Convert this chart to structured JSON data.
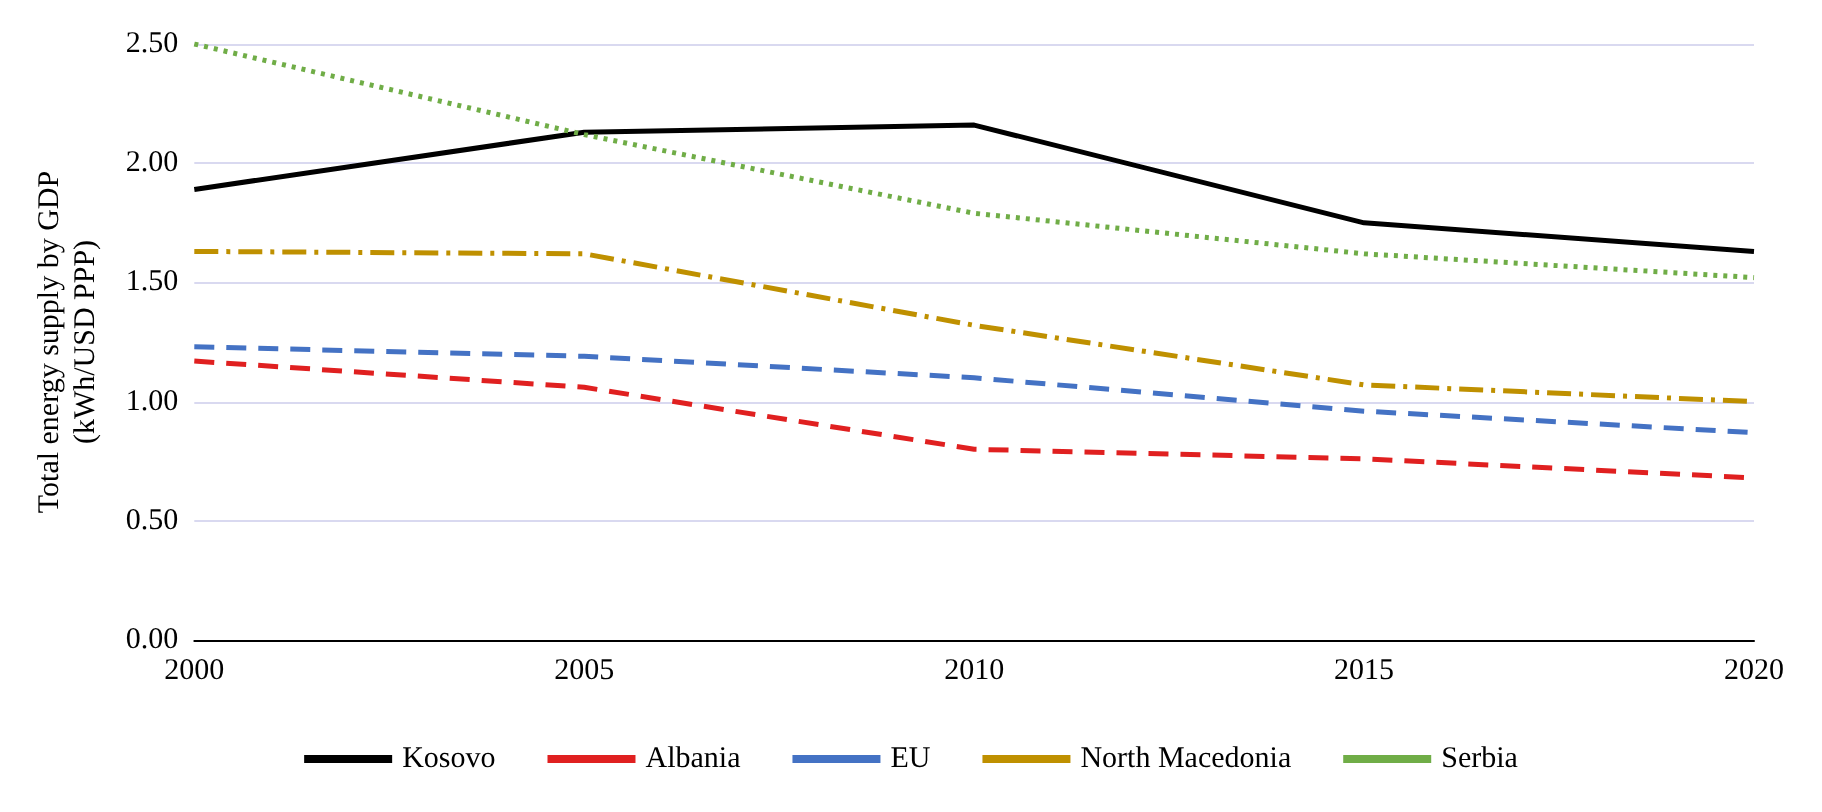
{
  "chart_data": {
    "type": "line",
    "ylabel": "Total energy supply by GDP (kWh/USD PPP)",
    "x": [
      2000,
      2005,
      2010,
      2015,
      2020
    ],
    "xlim": [
      2000,
      2020
    ],
    "xticks": [
      2000,
      2005,
      2010,
      2015,
      2020
    ],
    "ylim": [
      0,
      2.5
    ],
    "yticks": [
      {
        "value": 0,
        "label": "0.00"
      },
      {
        "value": 0.5,
        "label": "0.50"
      },
      {
        "value": 1,
        "label": "1.00"
      },
      {
        "value": 1.5,
        "label": "1.50"
      },
      {
        "value": 2,
        "label": "2.00"
      },
      {
        "value": 2.5,
        "label": "2.50"
      }
    ],
    "grid": "y",
    "legend": "bottom",
    "marker": "none",
    "series": [
      {
        "name": "Kosovo",
        "color": "#000000",
        "line_style": "solid",
        "values": [
          1.89,
          2.13,
          2.16,
          1.75,
          1.63
        ]
      },
      {
        "name": "Albania",
        "color": "#e02020",
        "line_style": "dashed",
        "values": [
          1.17,
          1.06,
          0.8,
          0.76,
          0.68
        ]
      },
      {
        "name": "EU",
        "color": "#4472c4",
        "line_style": "dashed",
        "values": [
          1.23,
          1.19,
          1.1,
          0.96,
          0.87
        ]
      },
      {
        "name": "North Macedonia",
        "color": "#bf9000",
        "line_style": "dashdot",
        "values": [
          1.63,
          1.62,
          1.32,
          1.07,
          1.0
        ]
      },
      {
        "name": "Serbia",
        "color": "#70ad47",
        "line_style": "dotted",
        "values": [
          2.5,
          2.12,
          1.79,
          1.62,
          1.52
        ]
      }
    ]
  }
}
